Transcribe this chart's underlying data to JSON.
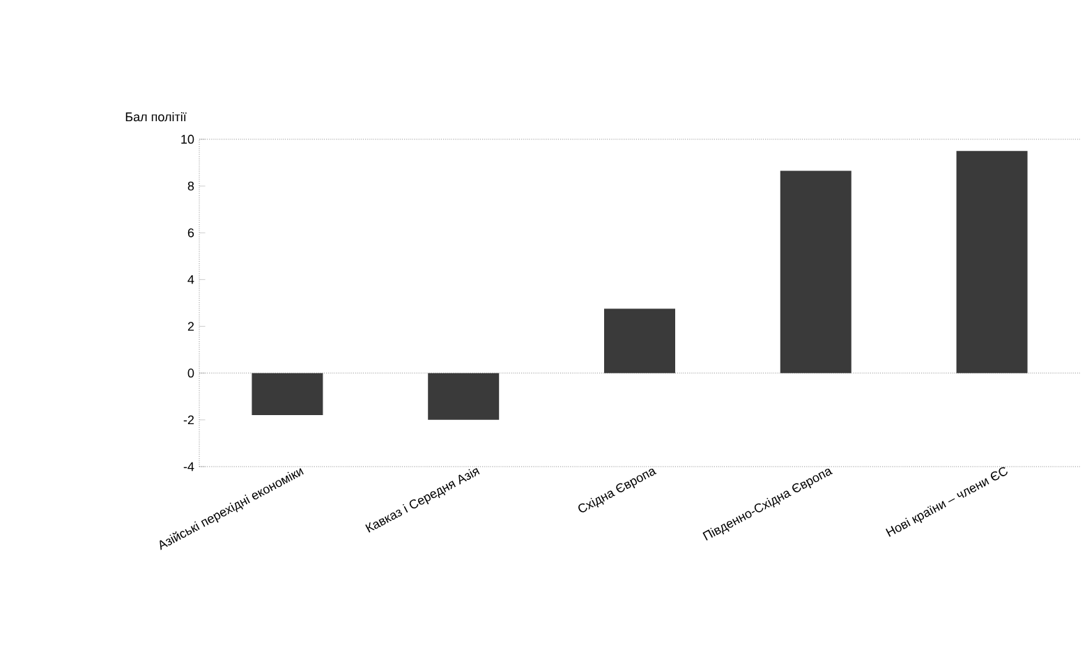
{
  "chart_data": {
    "type": "bar",
    "ylabel": "Бал політії",
    "categories": [
      "Азійські перехідні економіки",
      "Кавказ і Середня Азія",
      "Східна Європа",
      "Південно-Східна Європа",
      "Нові країни – члени ЄС"
    ],
    "values": [
      -1.8,
      -2.0,
      2.75,
      8.65,
      9.5
    ],
    "color": "#3a3a3a",
    "ylim": [
      -4,
      10
    ],
    "yticks": [
      -4,
      -2,
      0,
      2,
      4,
      6,
      8,
      10
    ],
    "grid": false,
    "ref_lines": [
      {
        "axis": "y",
        "value": 0
      }
    ]
  }
}
